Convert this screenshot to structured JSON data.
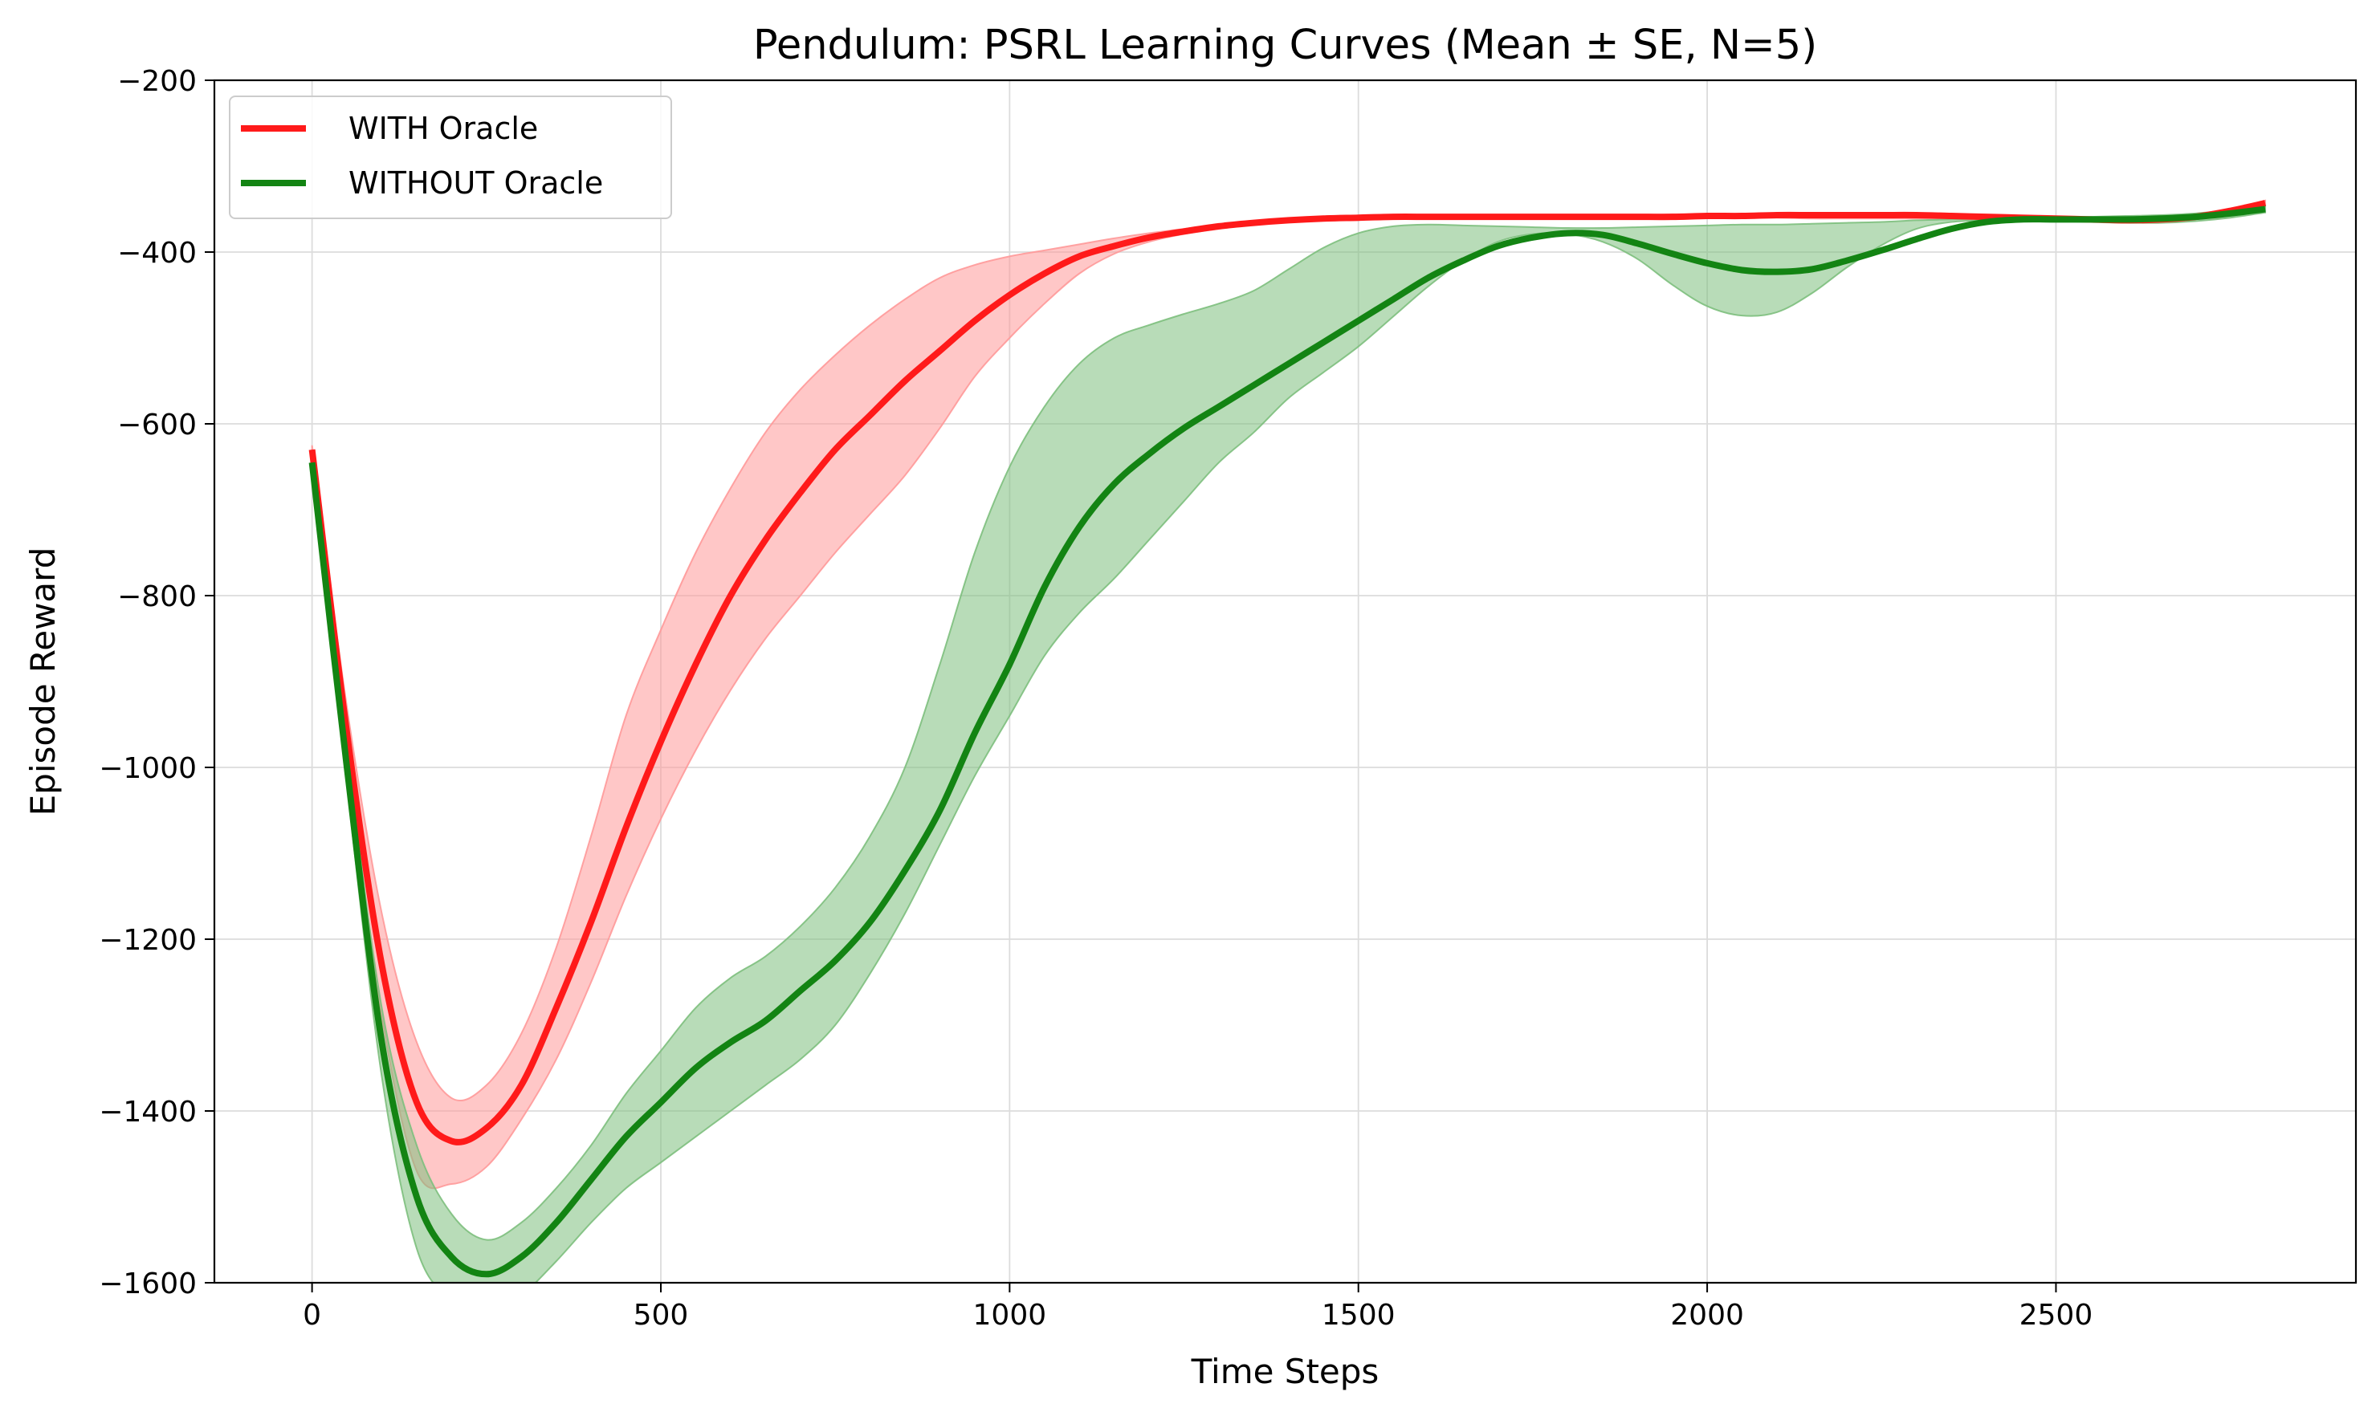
{
  "chart_data": {
    "type": "line",
    "title": "Pendulum: PSRL Learning Curves (Mean ± SE, N=5)",
    "xlabel": "Time Steps",
    "ylabel": "Episode Reward",
    "xlim": [
      -140,
      2930
    ],
    "ylim": [
      -1600,
      -200
    ],
    "xticks": [
      0,
      500,
      1000,
      1500,
      2000,
      2500
    ],
    "yticks": [
      -1600,
      -1400,
      -1200,
      -1000,
      -800,
      -600,
      -400,
      -200
    ],
    "xtick_labels": [
      "0",
      "500",
      "1000",
      "1500",
      "2000",
      "2500"
    ],
    "ytick_labels": [
      "−1600",
      "−1400",
      "−1200",
      "−1000",
      "−800",
      "−600",
      "−400",
      "−200"
    ],
    "grid": true,
    "legend": "top-left",
    "x": [
      0,
      50,
      100,
      150,
      200,
      250,
      300,
      350,
      400,
      450,
      500,
      550,
      600,
      650,
      700,
      750,
      800,
      850,
      900,
      950,
      1000,
      1050,
      1100,
      1150,
      1200,
      1250,
      1300,
      1350,
      1400,
      1450,
      1500,
      1550,
      1600,
      1650,
      1700,
      1750,
      1800,
      1850,
      1900,
      1950,
      2000,
      2050,
      2100,
      2150,
      2200,
      2250,
      2300,
      2350,
      2400,
      2450,
      2500,
      2550,
      2600,
      2650,
      2700,
      2750,
      2800
    ],
    "series": [
      {
        "name": "WITH Oracle",
        "color": "#ff1a1a",
        "band_color": "#ff9999",
        "mean": [
          -630,
          -960,
          -1230,
          -1390,
          -1435,
          -1420,
          -1370,
          -1280,
          -1180,
          -1070,
          -970,
          -880,
          -800,
          -735,
          -680,
          -630,
          -590,
          -550,
          -515,
          -480,
          -450,
          -425,
          -405,
          -393,
          -383,
          -376,
          -370,
          -366,
          -363,
          -361,
          -360,
          -359,
          -359,
          -359,
          -359,
          -359,
          -359,
          -359,
          -359,
          -359,
          -358,
          -358,
          -357,
          -357,
          -357,
          -357,
          -357,
          -358,
          -359,
          -360,
          -361,
          -362,
          -363,
          -362,
          -359,
          -352,
          -343
        ],
        "lower": [
          -635,
          -990,
          -1290,
          -1470,
          -1485,
          -1465,
          -1410,
          -1340,
          -1250,
          -1150,
          -1060,
          -980,
          -910,
          -850,
          -800,
          -750,
          -705,
          -660,
          -605,
          -545,
          -500,
          -460,
          -425,
          -402,
          -388,
          -379,
          -373,
          -368,
          -364,
          -362,
          -361,
          -360,
          -360,
          -360,
          -360,
          -360,
          -360,
          -360,
          -360,
          -360,
          -360,
          -360,
          -360,
          -361,
          -361,
          -361,
          -361,
          -361,
          -361,
          -361,
          -362,
          -363,
          -364,
          -363,
          -360,
          -354,
          -345
        ],
        "upper": [
          -625,
          -930,
          -1170,
          -1320,
          -1385,
          -1370,
          -1310,
          -1210,
          -1080,
          -940,
          -840,
          -750,
          -675,
          -610,
          -560,
          -520,
          -485,
          -455,
          -430,
          -415,
          -405,
          -398,
          -391,
          -384,
          -378,
          -373,
          -368,
          -364,
          -361,
          -359,
          -358,
          -357,
          -357,
          -357,
          -357,
          -357,
          -357,
          -357,
          -357,
          -356,
          -356,
          -356,
          -356,
          -355,
          -355,
          -355,
          -355,
          -356,
          -357,
          -358,
          -360,
          -361,
          -361,
          -360,
          -357,
          -350,
          -340
        ]
      },
      {
        "name": "WITHOUT Oracle",
        "color": "#138413",
        "band_color": "#7dbf7d",
        "mean": [
          -645,
          -1000,
          -1320,
          -1500,
          -1570,
          -1590,
          -1570,
          -1530,
          -1480,
          -1430,
          -1390,
          -1350,
          -1320,
          -1295,
          -1260,
          -1225,
          -1180,
          -1120,
          -1050,
          -960,
          -880,
          -790,
          -720,
          -670,
          -635,
          -605,
          -580,
          -555,
          -530,
          -505,
          -480,
          -455,
          -430,
          -410,
          -393,
          -383,
          -378,
          -380,
          -390,
          -402,
          -413,
          -421,
          -423,
          -420,
          -410,
          -398,
          -385,
          -373,
          -365,
          -362,
          -362,
          -362,
          -362,
          -361,
          -359,
          -355,
          -350
        ],
        "lower": [
          -650,
          -1020,
          -1360,
          -1560,
          -1620,
          -1640,
          -1615,
          -1575,
          -1530,
          -1490,
          -1460,
          -1430,
          -1400,
          -1370,
          -1340,
          -1300,
          -1240,
          -1170,
          -1090,
          -1010,
          -940,
          -870,
          -820,
          -780,
          -735,
          -690,
          -645,
          -610,
          -570,
          -540,
          -510,
          -475,
          -440,
          -410,
          -388,
          -379,
          -379,
          -388,
          -408,
          -438,
          -463,
          -474,
          -470,
          -448,
          -418,
          -392,
          -373,
          -365,
          -363,
          -363,
          -364,
          -365,
          -366,
          -366,
          -364,
          -360,
          -354
        ],
        "upper": [
          -640,
          -980,
          -1280,
          -1440,
          -1520,
          -1550,
          -1530,
          -1490,
          -1440,
          -1380,
          -1330,
          -1280,
          -1245,
          -1220,
          -1185,
          -1140,
          -1080,
          -1000,
          -880,
          -750,
          -650,
          -580,
          -530,
          -500,
          -485,
          -472,
          -460,
          -445,
          -420,
          -395,
          -378,
          -370,
          -368,
          -369,
          -370,
          -371,
          -372,
          -372,
          -371,
          -370,
          -369,
          -368,
          -368,
          -367,
          -366,
          -365,
          -363,
          -362,
          -361,
          -360,
          -360,
          -359,
          -358,
          -357,
          -355,
          -351,
          -346
        ]
      }
    ]
  }
}
